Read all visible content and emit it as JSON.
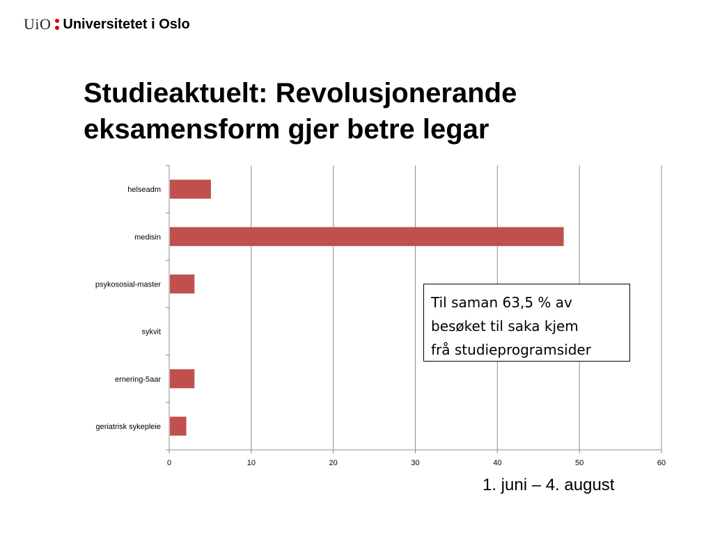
{
  "logo": {
    "prefix": "UiO",
    "name": "Universitetet i Oslo"
  },
  "title": {
    "line1": "Studieaktuelt: Revolusjonerande",
    "line2": "eksamensform gjer betre legar"
  },
  "chart_data": {
    "type": "bar",
    "orientation": "horizontal",
    "categories": [
      "helseadm",
      "medisin",
      "psykososial-master",
      "sykvit",
      "ernering-5aar",
      "geriatrisk sykepleie"
    ],
    "values": [
      5,
      48,
      3,
      0,
      3,
      2
    ],
    "xlim": [
      0,
      60
    ],
    "xticks": [
      0,
      10,
      20,
      30,
      40,
      50,
      60
    ],
    "grid": true,
    "bar_color": "#c0504d"
  },
  "callout": {
    "lines": [
      "Til saman 63,5 % av",
      "besøket til saka kjem",
      "frå studieprogramsider"
    ]
  },
  "period": "1. juni – 4. august"
}
